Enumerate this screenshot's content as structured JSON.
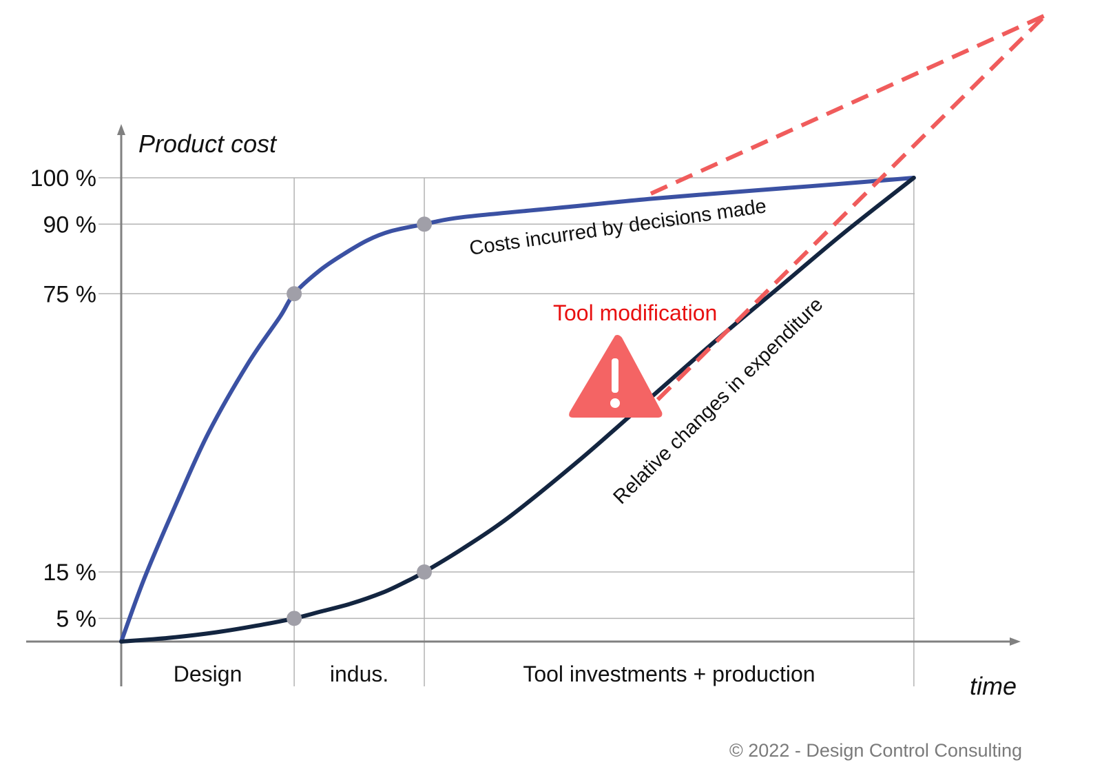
{
  "chart_data": {
    "type": "line",
    "ylabel": "Product cost",
    "xlabel": "time",
    "x_range": [
      0,
      1
    ],
    "y_range": [
      0,
      100
    ],
    "y_ticks": [
      {
        "value": 100,
        "label": "100 %"
      },
      {
        "value": 90,
        "label": "90 %"
      },
      {
        "value": 75,
        "label": "75 %"
      },
      {
        "value": 15,
        "label": "15 %"
      },
      {
        "value": 5,
        "label": "5 %"
      }
    ],
    "phase_boundaries": [
      0.218,
      0.382,
      0.999
    ],
    "phases": [
      {
        "label": "Design",
        "start": 0,
        "end": 0.218
      },
      {
        "label": "indus.",
        "start": 0.218,
        "end": 0.382
      },
      {
        "label": "Tool investments + production",
        "start": 0.382,
        "end": 0.999
      }
    ],
    "series": [
      {
        "name": "Costs incurred by decisions made",
        "color": "#3b51a3",
        "x": [
          0,
          0.03,
          0.07,
          0.11,
          0.16,
          0.2,
          0.218,
          0.25,
          0.28,
          0.31,
          0.34,
          0.382,
          0.43,
          0.55,
          0.67,
          0.8,
          0.9,
          0.999
        ],
        "y": [
          0,
          14,
          30,
          45,
          60,
          70,
          75,
          80,
          83.5,
          86.5,
          88.5,
          90,
          91.5,
          93.5,
          95.5,
          97.3,
          98.6,
          100
        ]
      },
      {
        "name": "Relative changes in expenditure",
        "color": "#132540",
        "x": [
          0,
          0.06,
          0.12,
          0.17,
          0.218,
          0.25,
          0.29,
          0.33,
          0.36,
          0.382,
          0.43,
          0.49,
          0.58,
          0.67,
          0.75,
          0.83,
          0.91,
          0.999
        ],
        "y": [
          0,
          0.8,
          2,
          3.4,
          5,
          6.4,
          8.2,
          10.6,
          13,
          15,
          20,
          27,
          39.5,
          53,
          65,
          76.5,
          88,
          100
        ]
      }
    ],
    "marked_points": [
      {
        "x": 0.218,
        "y": 75
      },
      {
        "x": 0.382,
        "y": 90
      },
      {
        "x": 0.218,
        "y": 5
      },
      {
        "x": 0.382,
        "y": 15
      }
    ],
    "annotations": {
      "tool_label": "Tool modification",
      "copyright": "© 2022 - Design Control Consulting"
    },
    "colors": {
      "axis": "#808080",
      "grid": "#b3b3b3",
      "marker": "#a09fa8",
      "warning": "#f46464",
      "dashed": "#f05c5c",
      "tool_text": "#e81010"
    }
  }
}
